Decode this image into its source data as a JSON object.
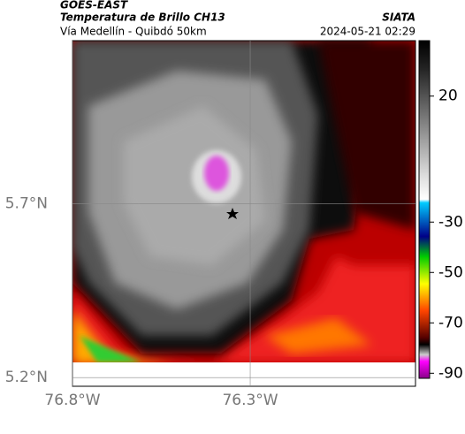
{
  "header": {
    "title": "GOES-EAST",
    "subtitle": "Temperatura de Brillo CH13",
    "route": "Vía Medellín - Quibdó 50km",
    "source": "SIATA",
    "datetime": "2024-05-21 02:29"
  },
  "map": {
    "xlim": [
      -76.8,
      -75.835
    ],
    "ylim": [
      5.175,
      6.17
    ],
    "xticks": [
      {
        "value": -76.8,
        "label": "76.8°W"
      },
      {
        "value": -76.3,
        "label": "76.3°W"
      }
    ],
    "yticks": [
      {
        "value": 5.2,
        "label": "5.2°N"
      },
      {
        "value": 5.7,
        "label": "5.7°N"
      }
    ],
    "grid": true
  },
  "colorbar": {
    "lim": [
      -92,
      42
    ],
    "ticks": [
      20,
      -30,
      -50,
      -70,
      -90
    ]
  }
}
